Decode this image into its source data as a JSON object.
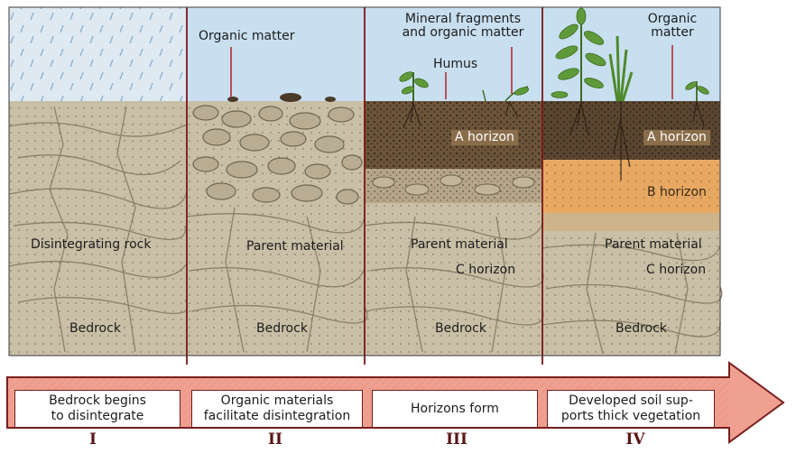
{
  "panels": [
    {
      "labels": {
        "disintegrating": "Disintegrating rock",
        "bedrock": "Bedrock"
      },
      "step": {
        "text_line1": "Bedrock begins",
        "text_line2": "to disintegrate",
        "numeral": "I"
      }
    },
    {
      "labels": {
        "organic": "Organic matter",
        "parent": "Parent material",
        "bedrock": "Bedrock"
      },
      "step": {
        "text_line1": "Organic materials",
        "text_line2": "facilitate disintegration",
        "numeral": "II"
      }
    },
    {
      "labels": {
        "mineral_line1": "Mineral fragments",
        "mineral_line2": "and organic matter",
        "humus": "Humus",
        "a_horizon": "A horizon",
        "parent": "Parent material",
        "c_horizon": "C horizon",
        "bedrock": "Bedrock"
      },
      "step": {
        "text_line1": "Horizons form",
        "numeral": "III"
      }
    },
    {
      "labels": {
        "organic_line1": "Organic",
        "organic_line2": "matter",
        "a_horizon": "A horizon",
        "b_horizon": "B horizon",
        "parent": "Parent material",
        "c_horizon": "C horizon",
        "bedrock": "Bedrock"
      },
      "step": {
        "text_line1": "Developed soil sup-",
        "text_line2": "ports thick vegetation",
        "numeral": "IV"
      }
    }
  ],
  "colors": {
    "sky": "#c8dff0",
    "rain_sky": "#dfe9f2",
    "rock": "#c9bfa6",
    "crack": "#8c806a",
    "soil_dark": "#5a4630",
    "soil_mid": "#8a6d4a",
    "b_horizon": "#e8a862",
    "arrow_fill": "#f0a090",
    "arrow_border": "#7a1e1e",
    "divider": "#7a1616",
    "plant": "#5f9a3a"
  }
}
